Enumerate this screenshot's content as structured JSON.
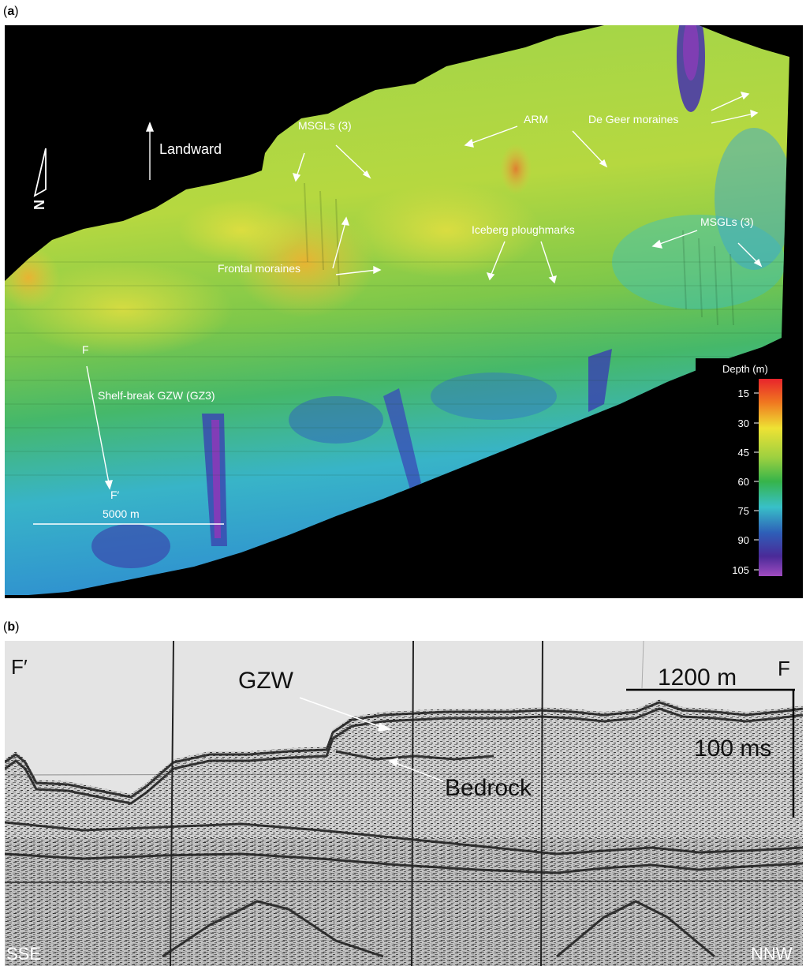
{
  "panel_a": {
    "letter": "a",
    "labels": {
      "landward": "Landward",
      "msgls_top": "MSGLs (3)",
      "arm": "ARM",
      "de_geer": "De Geer moraines",
      "frontal": "Frontal moraines",
      "iceberg": "Iceberg ploughmarks",
      "msgls_right": "MSGLs (3)",
      "f_top": "F",
      "shelf_break": "Shelf-break GZW (GZ3)",
      "f_prime": "F′",
      "scale": "5000 m",
      "north": "N"
    },
    "legend": {
      "title": "Depth (m)",
      "ticks": [
        "15",
        "30",
        "45",
        "60",
        "75",
        "90",
        "105"
      ],
      "gradient": [
        "#e8242c",
        "#f07820",
        "#eee234",
        "#9cd040",
        "#36b44a",
        "#38c0c8",
        "#2e5fb8",
        "#4a2a98",
        "#a04cc0"
      ]
    }
  },
  "panel_b": {
    "letter": "b",
    "labels": {
      "f_prime": "F′",
      "f": "F",
      "gzw": "GZW",
      "bedrock": "Bedrock",
      "scale_h": "1200 m",
      "scale_v": "100 ms",
      "sse": "SSE",
      "nnw": "NNW"
    }
  }
}
